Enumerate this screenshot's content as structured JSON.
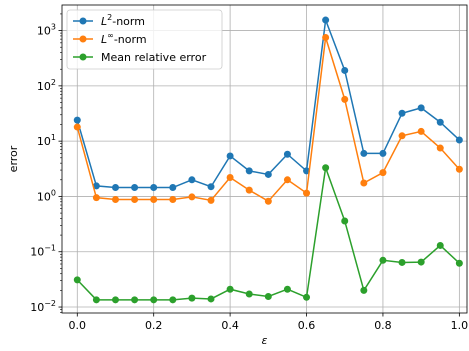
{
  "chart_data": {
    "type": "line",
    "xlabel": "ε",
    "ylabel": "error",
    "yscale": "log",
    "xlim": [
      -0.04,
      1.02
    ],
    "ylim": [
      0.0078,
      2900
    ],
    "grid": true,
    "legend_position": "top-left",
    "x_ticks": [
      0.0,
      0.2,
      0.4,
      0.6,
      0.8,
      1.0
    ],
    "x_tick_labels": [
      "0.0",
      "0.2",
      "0.4",
      "0.6",
      "0.8",
      "1.0"
    ],
    "y_ticks": [
      0.01,
      0.1,
      1,
      10,
      100,
      1000
    ],
    "y_tick_labels": [
      {
        "base": "10",
        "exp": "−2"
      },
      {
        "base": "10",
        "exp": "−1"
      },
      {
        "base": "10",
        "exp": "0"
      },
      {
        "base": "10",
        "exp": "1"
      },
      {
        "base": "10",
        "exp": "2"
      },
      {
        "base": "10",
        "exp": "3"
      }
    ],
    "x": [
      0.0,
      0.05,
      0.1,
      0.15,
      0.2,
      0.25,
      0.3,
      0.35,
      0.4,
      0.45,
      0.5,
      0.55,
      0.6,
      0.65,
      0.7,
      0.75,
      0.8,
      0.85,
      0.9,
      0.95,
      1.0
    ],
    "series": [
      {
        "name": "L²-norm",
        "name_base": "L",
        "name_sup": "2",
        "name_rest": "-norm",
        "color": "#1f77b4",
        "values": [
          24,
          1.55,
          1.45,
          1.45,
          1.45,
          1.45,
          2.0,
          1.5,
          5.4,
          2.9,
          2.5,
          5.8,
          2.9,
          1550,
          190,
          6.0,
          6.0,
          32,
          40,
          22,
          10.5
        ]
      },
      {
        "name": "L∞-norm",
        "name_base": "L",
        "name_sup": "∞",
        "name_rest": "-norm",
        "color": "#ff7f0e",
        "values": [
          18,
          0.95,
          0.88,
          0.88,
          0.88,
          0.88,
          0.98,
          0.85,
          2.2,
          1.3,
          0.82,
          2.0,
          1.15,
          750,
          57,
          1.75,
          2.7,
          12.5,
          15,
          7.5,
          3.1
        ]
      },
      {
        "name": "Mean relative error",
        "name_base": "Mean relative error",
        "name_sup": "",
        "name_rest": "",
        "color": "#2ca02c",
        "values": [
          0.031,
          0.0135,
          0.0135,
          0.0135,
          0.0135,
          0.0135,
          0.0145,
          0.014,
          0.021,
          0.0172,
          0.0155,
          0.021,
          0.015,
          3.3,
          0.36,
          0.02,
          0.07,
          0.064,
          0.065,
          0.13,
          0.062
        ]
      }
    ]
  }
}
